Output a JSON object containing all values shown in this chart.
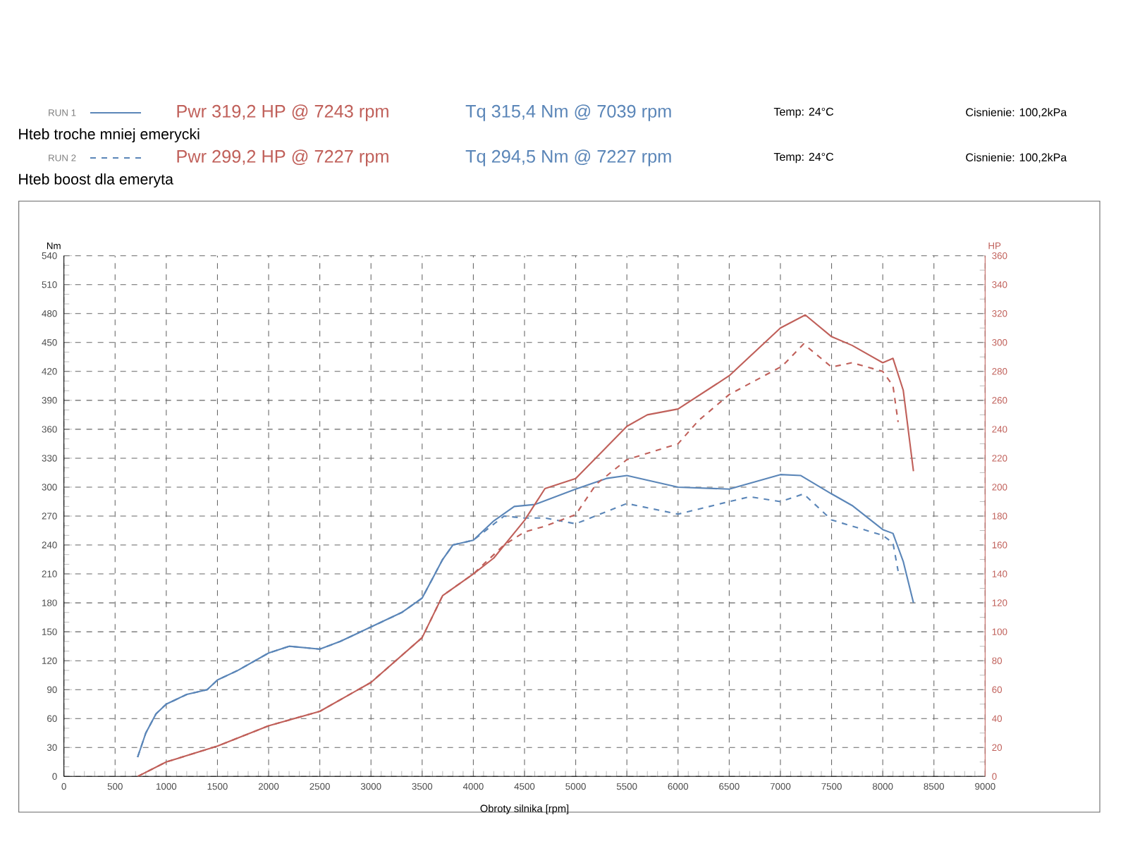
{
  "chart_data": {
    "type": "line",
    "xlabel": "Obroty silnika [rpm]",
    "ylabel": "Nm",
    "y2label": "HP",
    "xlim": [
      0,
      9000
    ],
    "xticks": [
      0,
      500,
      1000,
      1500,
      2000,
      2500,
      3000,
      3500,
      4000,
      4500,
      5000,
      5500,
      6000,
      6500,
      7000,
      7500,
      8000,
      8500,
      9000
    ],
    "ylim": [
      0,
      540
    ],
    "yticks": [
      0,
      30,
      60,
      90,
      120,
      150,
      180,
      210,
      240,
      270,
      300,
      330,
      360,
      390,
      420,
      450,
      480,
      510,
      540
    ],
    "y2lim": [
      0,
      360
    ],
    "y2ticks": [
      0,
      20,
      40,
      60,
      80,
      100,
      120,
      140,
      160,
      180,
      200,
      220,
      240,
      260,
      280,
      300,
      320,
      340,
      360
    ],
    "grid": true,
    "annotations": [
      "RUN 1",
      "Pwr 319,2 HP @ 7243 rpm",
      "Tq 315,4 Nm @ 7039 rpm",
      "Temp: 24°C",
      "Cisnienie: 100,2kPa",
      "Hteb troche mniej emerycki",
      "RUN 2",
      "Pwr 299,2 HP @ 7227 rpm",
      "Tq 294,5 Nm @ 7227 rpm",
      "Temp: 24°C",
      "Cisnienie: 100,2kPa",
      "Hteb boost dla emeryta"
    ],
    "series": [
      {
        "color": "#5b86b8",
        "line_style": "solid",
        "x": [
          720,
          800,
          900,
          1000,
          1200,
          1400,
          1500,
          1700,
          2000,
          2200,
          2500,
          2700,
          3000,
          3300,
          3500,
          3600,
          3700,
          3800,
          4000,
          4200,
          4400,
          4600,
          5000,
          5300,
          5500,
          6000,
          6500,
          7000,
          7200,
          7500,
          7700,
          8000,
          8100,
          8200,
          8300
        ],
        "values": [
          20,
          45,
          65,
          75,
          85,
          90,
          100,
          110,
          128,
          135,
          132,
          140,
          155,
          170,
          185,
          205,
          225,
          240,
          245,
          265,
          280,
          282,
          298,
          309,
          312,
          300,
          298,
          313,
          312,
          293,
          281,
          256,
          252,
          223,
          180
        ]
      },
      {
        "color": "#c0605a",
        "line_style": "solid",
        "axis": "y2",
        "x": [
          720,
          1000,
          1500,
          2000,
          2500,
          3000,
          3500,
          3700,
          4000,
          4200,
          4500,
          4700,
          5000,
          5500,
          5700,
          6000,
          6500,
          7000,
          7243,
          7500,
          7700,
          8000,
          8100,
          8200,
          8300
        ],
        "values": [
          0,
          10,
          21,
          35,
          45,
          65,
          96,
          125,
          140,
          151,
          177,
          199,
          206,
          242,
          250,
          254,
          277,
          310,
          319,
          304,
          298,
          286,
          289,
          267,
          211
        ]
      },
      {
        "color": "#5b86b8",
        "line_style": "dashed",
        "x": [
          720,
          800,
          900,
          1000,
          1200,
          1400,
          1500,
          1700,
          2000,
          2200,
          2500,
          2700,
          3000,
          3300,
          3500,
          3600,
          3700,
          3800,
          4000,
          4300,
          4500,
          4700,
          5000,
          5500,
          6000,
          6500,
          6700,
          7000,
          7227,
          7500,
          8000,
          8100,
          8150
        ],
        "values": [
          20,
          45,
          65,
          75,
          85,
          90,
          100,
          110,
          128,
          135,
          132,
          140,
          155,
          170,
          185,
          205,
          225,
          240,
          245,
          270,
          268,
          268,
          262,
          283,
          272,
          285,
          290,
          285,
          293,
          266,
          250,
          242,
          213
        ]
      },
      {
        "color": "#c0605a",
        "line_style": "dashed",
        "axis": "y2",
        "x": [
          720,
          1000,
          1500,
          2000,
          2500,
          3000,
          3500,
          3700,
          4000,
          4300,
          4500,
          4700,
          5000,
          5200,
          5500,
          6000,
          6200,
          6500,
          7000,
          7050,
          7227,
          7500,
          7700,
          8000,
          8100,
          8150
        ],
        "values": [
          0,
          10,
          21,
          35,
          45,
          65,
          96,
          125,
          140,
          160,
          169,
          173,
          181,
          202,
          219,
          230,
          246,
          264,
          283,
          286,
          299,
          283,
          286,
          280,
          270,
          245
        ]
      }
    ]
  }
}
